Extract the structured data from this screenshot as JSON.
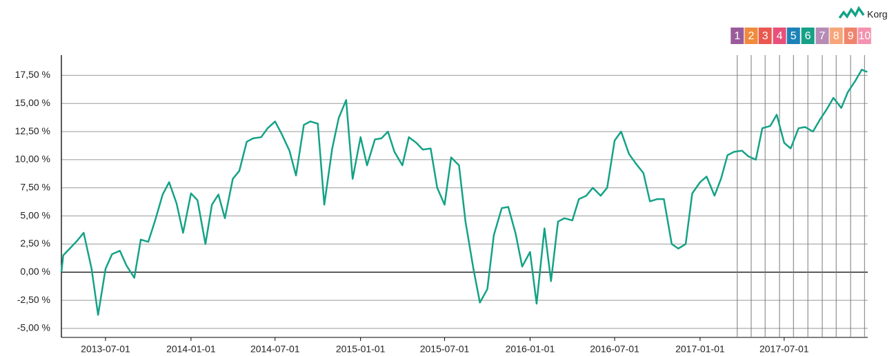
{
  "chart_data": {
    "type": "line",
    "legend": {
      "label": "Korg",
      "position": "top-right"
    },
    "xlim": [
      "2013-03-28",
      "2017-12-28"
    ],
    "xticks": [
      "2013-07-01",
      "2014-01-01",
      "2014-07-01",
      "2015-01-01",
      "2015-07-01",
      "2016-01-01",
      "2016-07-01",
      "2017-01-01",
      "2017-07-01"
    ],
    "ylim": [
      -5.8,
      19.3
    ],
    "yticks": [
      {
        "value": -5,
        "label": "-5,00 %"
      },
      {
        "value": -2.5,
        "label": "-2,50 %"
      },
      {
        "value": 0,
        "label": "0,00 %"
      },
      {
        "value": 2.5,
        "label": "2,50 %"
      },
      {
        "value": 5,
        "label": "5,00 %"
      },
      {
        "value": 7.5,
        "label": "7,50 %"
      },
      {
        "value": 10,
        "label": "10,00 %"
      },
      {
        "value": 12.5,
        "label": "12,50 %"
      },
      {
        "value": 15,
        "label": "15,00 %"
      },
      {
        "value": 17.5,
        "label": "17,50 %"
      }
    ],
    "grid": true,
    "x": [
      "2013-03-28",
      "2013-04-01",
      "2013-04-15",
      "2013-05-01",
      "2013-05-15",
      "2013-06-01",
      "2013-06-15",
      "2013-07-01",
      "2013-07-15",
      "2013-08-01",
      "2013-08-15",
      "2013-09-01",
      "2013-09-15",
      "2013-10-01",
      "2013-10-15",
      "2013-11-01",
      "2013-11-15",
      "2013-12-01",
      "2013-12-15",
      "2014-01-01",
      "2014-01-15",
      "2014-02-01",
      "2014-02-15",
      "2014-03-01",
      "2014-03-15",
      "2014-04-01",
      "2014-04-15",
      "2014-05-01",
      "2014-05-15",
      "2014-06-01",
      "2014-06-15",
      "2014-07-01",
      "2014-07-15",
      "2014-08-01",
      "2014-08-15",
      "2014-09-01",
      "2014-09-15",
      "2014-10-01",
      "2014-10-15",
      "2014-11-01",
      "2014-11-15",
      "2014-12-01",
      "2014-12-15",
      "2015-01-01",
      "2015-01-15",
      "2015-02-01",
      "2015-02-15",
      "2015-03-01",
      "2015-03-15",
      "2015-04-01",
      "2015-04-15",
      "2015-05-01",
      "2015-05-15",
      "2015-06-01",
      "2015-06-15",
      "2015-07-01",
      "2015-07-15",
      "2015-08-01",
      "2015-08-15",
      "2015-09-01",
      "2015-09-15",
      "2015-10-01",
      "2015-10-15",
      "2015-11-01",
      "2015-11-15",
      "2015-12-01",
      "2015-12-15",
      "2016-01-01",
      "2016-01-15",
      "2016-02-01",
      "2016-02-15",
      "2016-03-01",
      "2016-03-15",
      "2016-04-01",
      "2016-04-15",
      "2016-05-01",
      "2016-05-15",
      "2016-06-01",
      "2016-06-15",
      "2016-07-01",
      "2016-07-15",
      "2016-08-01",
      "2016-08-15",
      "2016-09-01",
      "2016-09-15",
      "2016-10-01",
      "2016-10-15",
      "2016-11-01",
      "2016-11-15",
      "2016-12-01",
      "2016-12-15",
      "2017-01-01",
      "2017-01-15",
      "2017-02-01",
      "2017-02-15",
      "2017-03-01",
      "2017-03-15",
      "2017-04-01",
      "2017-04-15",
      "2017-05-01",
      "2017-05-15",
      "2017-06-01",
      "2017-06-15",
      "2017-07-01",
      "2017-07-15",
      "2017-08-01",
      "2017-08-15",
      "2017-09-01",
      "2017-09-15",
      "2017-10-01",
      "2017-10-15",
      "2017-11-01",
      "2017-11-15",
      "2017-12-01",
      "2017-12-15",
      "2017-12-27"
    ],
    "series": [
      {
        "name": "Korg",
        "color": "#13a286",
        "values": [
          0,
          1.5,
          2.1,
          2.8,
          3.5,
          0.3,
          -3.8,
          0.3,
          1.6,
          1.9,
          0.6,
          -0.5,
          2.9,
          2.7,
          4.5,
          6.9,
          8.0,
          6.1,
          3.5,
          7.0,
          6.4,
          2.5,
          6.0,
          6.9,
          4.8,
          8.3,
          9.0,
          11.6,
          11.9,
          12.0,
          12.8,
          13.4,
          12.3,
          10.8,
          8.6,
          13.1,
          13.4,
          13.2,
          6.0,
          11.0,
          13.7,
          15.3,
          8.3,
          12.0,
          9.5,
          11.8,
          11.9,
          12.5,
          10.7,
          9.5,
          12.0,
          11.5,
          10.9,
          11.0,
          7.5,
          6.0,
          10.2,
          9.5,
          4.5,
          0.3,
          -2.7,
          -1.5,
          3.3,
          5.7,
          5.8,
          3.4,
          0.5,
          1.8,
          -2.8,
          3.9,
          -0.8,
          4.5,
          4.8,
          4.6,
          6.5,
          6.8,
          7.5,
          6.8,
          7.5,
          11.7,
          12.5,
          10.5,
          9.7,
          8.8,
          6.3,
          6.5,
          6.5,
          2.5,
          2.1,
          2.5,
          7.0,
          8.0,
          8.5,
          6.8,
          8.3,
          10.4,
          10.7,
          10.8,
          10.3,
          10.0,
          12.8,
          13.0,
          14.0,
          11.5,
          11.0,
          12.8,
          12.9,
          12.5,
          13.5,
          14.5,
          15.5,
          14.6,
          16.0,
          17.0,
          18.0,
          17.8
        ]
      }
    ],
    "markers": [
      {
        "label": "1",
        "x": "2017-03-22",
        "color": "#9a5b9b"
      },
      {
        "label": "2",
        "x": "2017-04-21",
        "color": "#f08a3c"
      },
      {
        "label": "3",
        "x": "2017-05-21",
        "color": "#e9584f"
      },
      {
        "label": "4",
        "x": "2017-06-21",
        "color": "#e8507a"
      },
      {
        "label": "5",
        "x": "2017-07-21",
        "color": "#1c82b8"
      },
      {
        "label": "6",
        "x": "2017-08-21",
        "color": "#16a085"
      },
      {
        "label": "7",
        "x": "2017-09-21",
        "color": "#b68bb6"
      },
      {
        "label": "8",
        "x": "2017-10-21",
        "color": "#f7a67a"
      },
      {
        "label": "9",
        "x": "2017-11-21",
        "color": "#f0846c"
      },
      {
        "label": "10",
        "x": "2017-12-21",
        "color": "#f492b0"
      }
    ]
  }
}
